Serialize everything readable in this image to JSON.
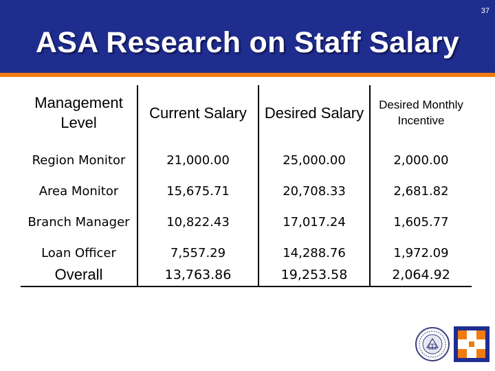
{
  "slide": {
    "number": "37",
    "title": "ASA Research on Staff Salary"
  },
  "table": {
    "headers": [
      "Management Level",
      "Current Salary",
      "Desired Salary",
      "Desired Monthly Incentive"
    ],
    "rows": [
      {
        "level": "Region Monitor",
        "current": "21,000.00",
        "desired": "25,000.00",
        "incentive": "2,000.00"
      },
      {
        "level": "Area Monitor",
        "current": "15,675.71",
        "desired": "20,708.33",
        "incentive": "2,681.82"
      },
      {
        "level": "Branch Manager",
        "current": "10,822.43",
        "desired": "17,017.24",
        "incentive": "1,605.77"
      },
      {
        "level": "Loan Officer",
        "current": "7,557.29",
        "desired": "14,288.76",
        "incentive": "1,972.09"
      },
      {
        "level": "Overall",
        "current": "13,763.86",
        "desired": "19,253.58",
        "incentive": "2,064.92"
      }
    ]
  },
  "colors": {
    "banner": "#1f2d8f",
    "accent_bar": "#f07c0f",
    "logo_orange": "#f07c0f",
    "logo_blue": "#1f2d8f"
  },
  "logos": {
    "seal_icon": "university-seal-icon",
    "brand_icon": "asa-logo-icon"
  }
}
